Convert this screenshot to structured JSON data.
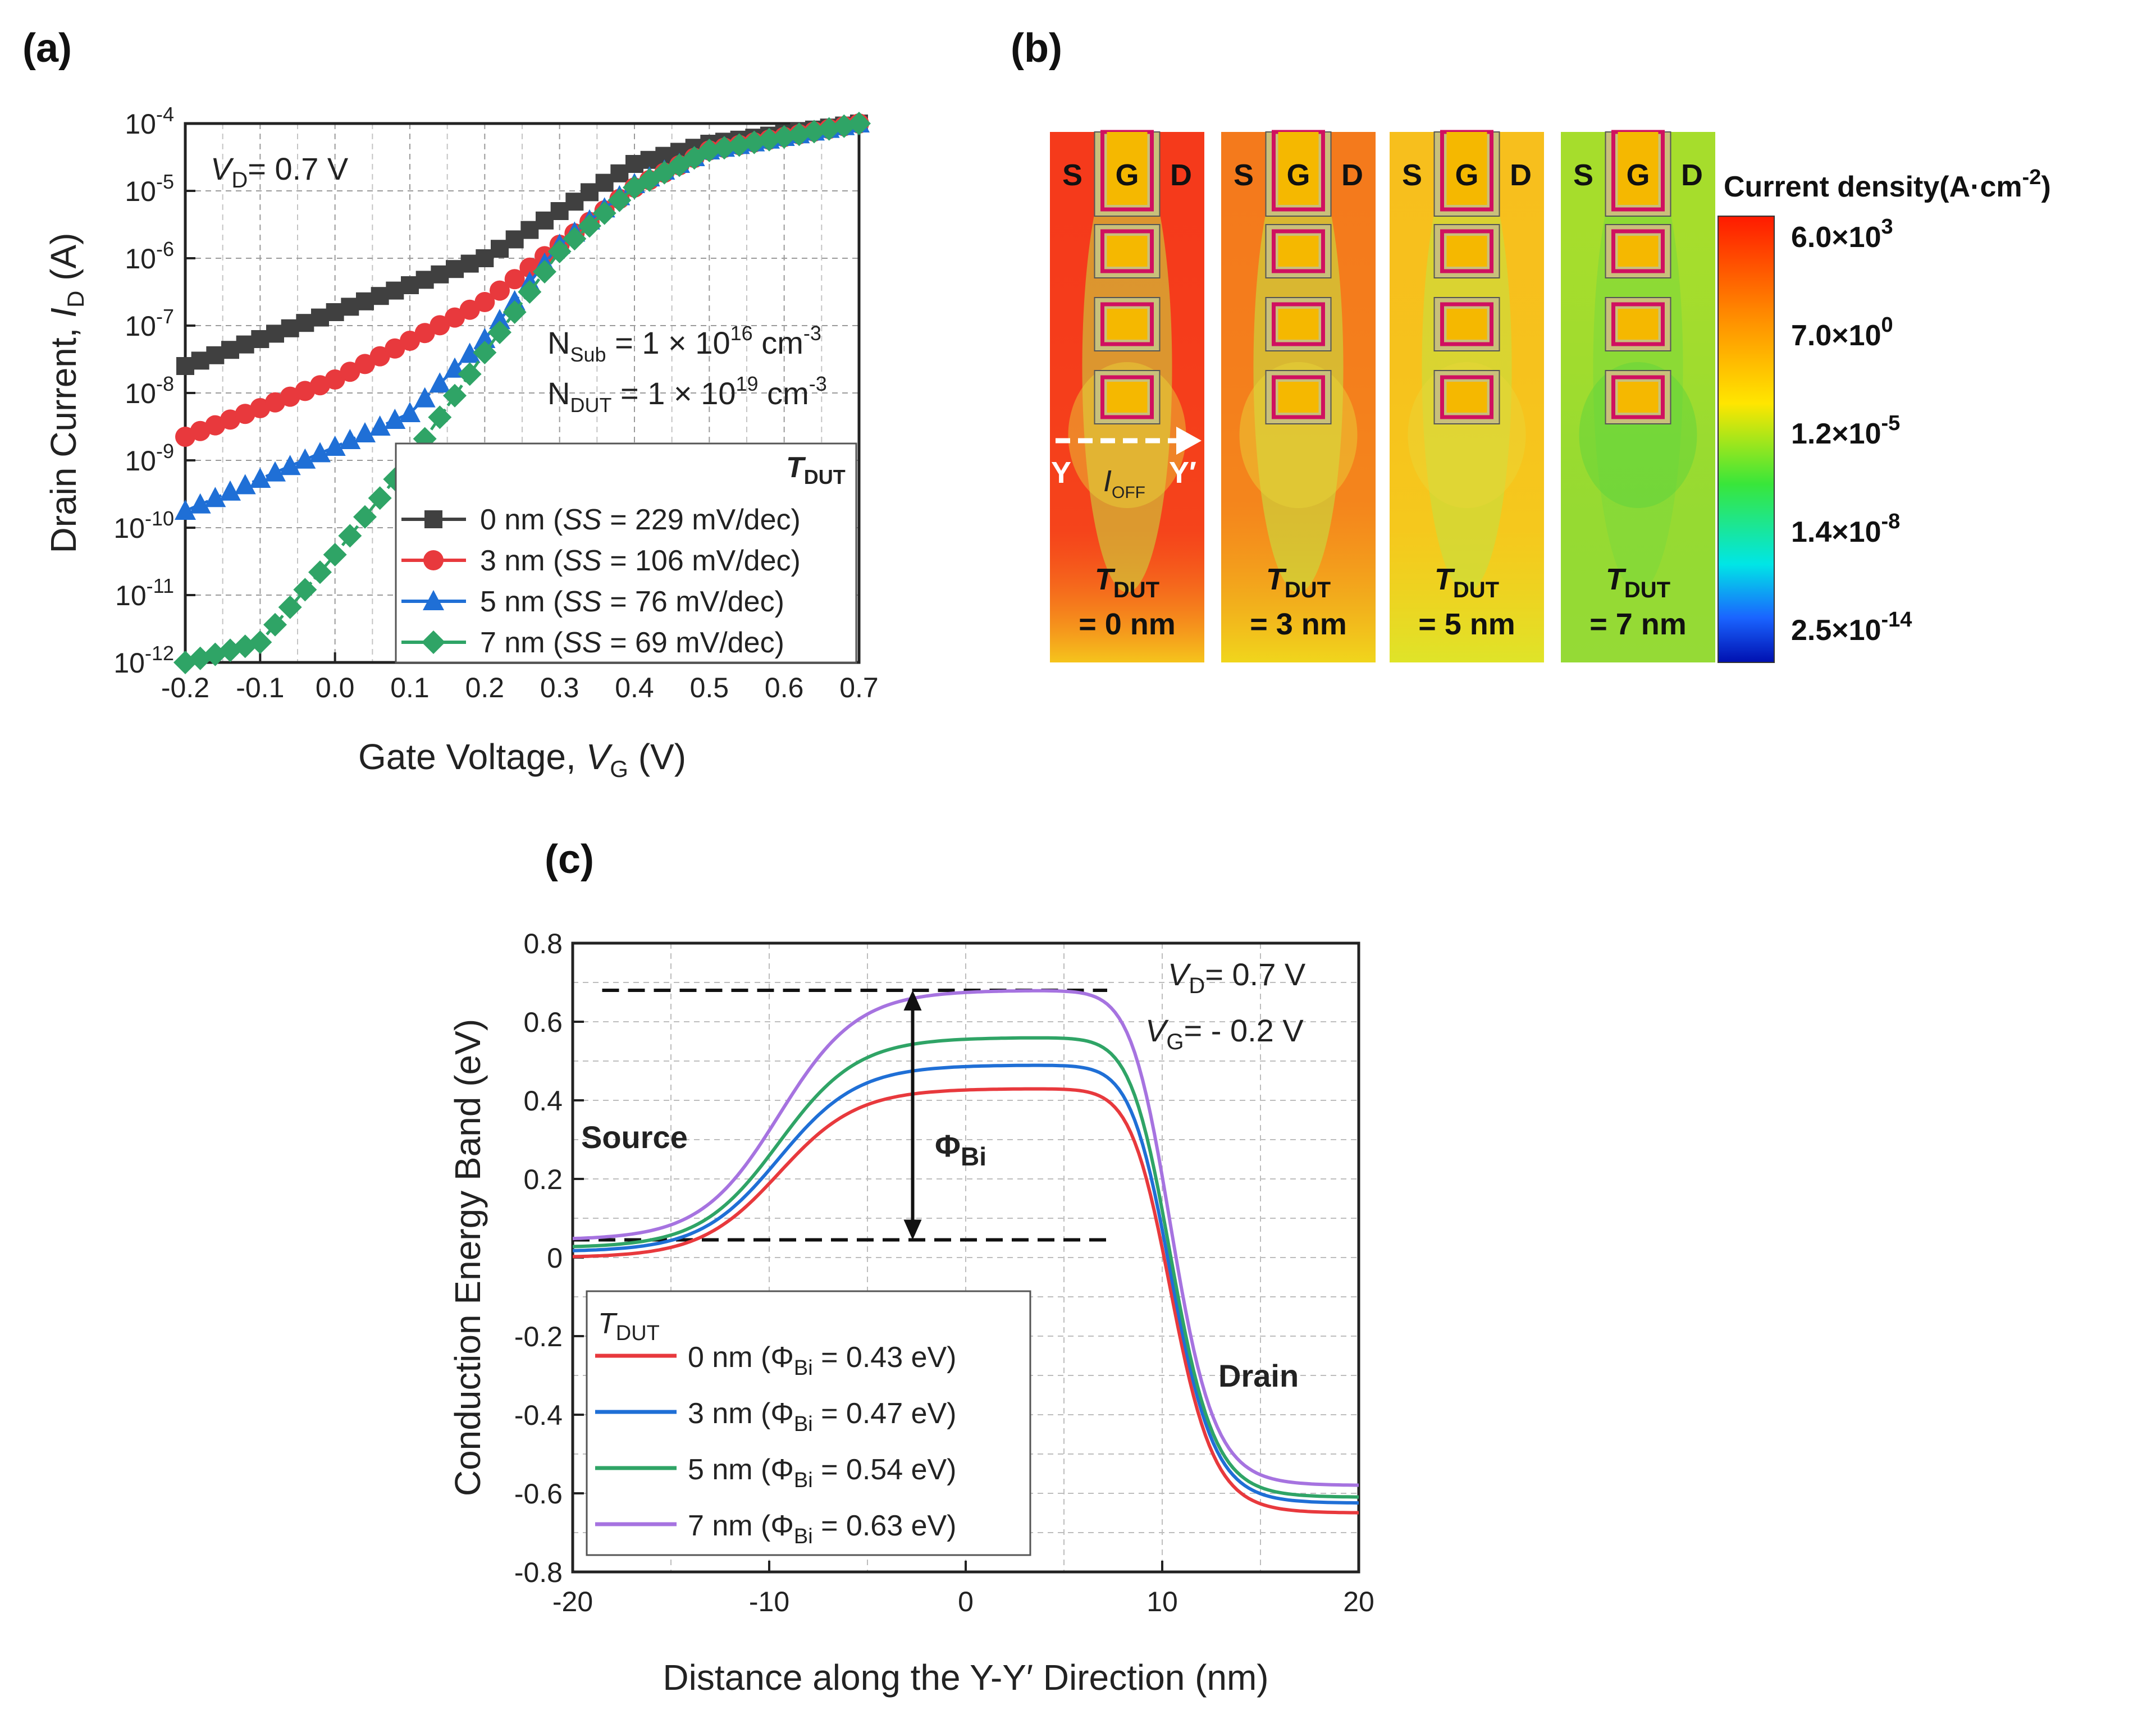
{
  "panels": {
    "a": "(a)",
    "b": "(b)",
    "c": "(c)"
  },
  "chart_data": [
    {
      "id": "a",
      "type": "line",
      "yscale": "log",
      "xlabel": "Gate Voltage, V_G (V)",
      "ylabel": "Drain Current, I_D (A)",
      "xlim": [
        -0.2,
        0.7
      ],
      "ylim_exp": [
        -12,
        -4
      ],
      "xticks": [
        "-0.2",
        "-0.1",
        "0.0",
        "0.1",
        "0.2",
        "0.3",
        "0.4",
        "0.5",
        "0.6",
        "0.7"
      ],
      "xtick_values": [
        -0.2,
        -0.1,
        0.0,
        0.1,
        0.2,
        0.3,
        0.4,
        0.5,
        0.6,
        0.7
      ],
      "yticks_exp": [
        "-4",
        "-5",
        "-6",
        "-7",
        "-8",
        "-9",
        "-10",
        "-11",
        "-12"
      ],
      "ytick_base": "10",
      "annotations": {
        "vd": "= 0.7 V",
        "nsub_pre": "N",
        "nsub_sub": "Sub",
        "nsub_mid": " = 1 × 10",
        "nsub_exp": "16",
        "nsub_unit": " cm",
        "nsub_unit_exp": "-3",
        "ndut_pre": "N",
        "ndut_sub": "DUT",
        "ndut_mid": " = 1 × 10",
        "ndut_exp": "19",
        "ndut_unit": " cm",
        "ndut_unit_exp": "-3"
      },
      "legend_title": "T_DUT",
      "series": [
        {
          "name": "0 nm (SS = 229 mV/dec)",
          "thickness": "0 nm",
          "ss": "229 mV/dec",
          "color": "#404040",
          "marker": "square",
          "points": [
            [
              -0.2,
              -7.6
            ],
            [
              0.0,
              -6.8
            ],
            [
              0.2,
              -6.0
            ],
            [
              0.3,
              -5.3
            ],
            [
              0.4,
              -4.6
            ],
            [
              0.5,
              -4.3
            ],
            [
              0.7,
              -4.0
            ]
          ]
        },
        {
          "name": "3 nm (SS = 106 mV/dec)",
          "thickness": "3 nm",
          "ss": "106 mV/dec",
          "color": "#e8393d",
          "marker": "circle",
          "points": [
            [
              -0.2,
              -8.65
            ],
            [
              0.0,
              -7.8
            ],
            [
              0.2,
              -6.65
            ],
            [
              0.3,
              -5.8
            ],
            [
              0.4,
              -4.95
            ],
            [
              0.5,
              -4.4
            ],
            [
              0.7,
              -4.0
            ]
          ]
        },
        {
          "name": "5 nm (SS = 76 mV/dec)",
          "thickness": "5 nm",
          "ss": "76 mV/dec",
          "color": "#1f6fd6",
          "marker": "triangle",
          "points": [
            [
              -0.2,
              -9.75
            ],
            [
              0.0,
              -8.8
            ],
            [
              0.1,
              -8.3
            ],
            [
              0.2,
              -7.2
            ],
            [
              0.3,
              -5.8
            ],
            [
              0.4,
              -4.9
            ],
            [
              0.5,
              -4.4
            ],
            [
              0.7,
              -4.0
            ]
          ]
        },
        {
          "name": "7 nm (SS = 69 mV/dec)",
          "thickness": "7 nm",
          "ss": "69 mV/dec",
          "color": "#2fa466",
          "marker": "diamond",
          "points": [
            [
              -0.2,
              -12.0
            ],
            [
              -0.1,
              -11.7
            ],
            [
              0.0,
              -10.4
            ],
            [
              0.1,
              -9.0
            ],
            [
              0.2,
              -7.4
            ],
            [
              0.3,
              -5.9
            ],
            [
              0.4,
              -4.95
            ],
            [
              0.5,
              -4.4
            ],
            [
              0.7,
              -4.0
            ]
          ]
        }
      ]
    },
    {
      "id": "b",
      "type": "heatmap",
      "colorbar_title": "Current density(A·cm",
      "colorbar_title_exp": "-2",
      "colorbar_title_end": ")",
      "colorbar_labels": [
        {
          "mant": "6.0×10",
          "exp": "3"
        },
        {
          "mant": "7.0×10",
          "exp": "0"
        },
        {
          "mant": "1.2×10",
          "exp": "-5"
        },
        {
          "mant": "1.4×10",
          "exp": "-8"
        },
        {
          "mant": "2.5×10",
          "exp": "-14"
        }
      ],
      "terminal_labels": {
        "s": "S",
        "g": "G",
        "d": "D"
      },
      "cut_labels": {
        "y": "Y",
        "y_prime": "Y′",
        "ioff": "I",
        "ioff_sub": "OFF"
      },
      "sims": [
        {
          "t_label": "T",
          "t_sub": "DUT",
          "value": "= 0 nm",
          "bg": "#f53a1b"
        },
        {
          "t_label": "T",
          "t_sub": "DUT",
          "value": "= 3 nm",
          "bg": "#f47a1c"
        },
        {
          "t_label": "T",
          "t_sub": "DUT",
          "value": "= 5 nm",
          "bg": "#f7bf1d"
        },
        {
          "t_label": "T",
          "t_sub": "DUT",
          "value": "= 7 nm",
          "bg": "#a6dd2c"
        }
      ]
    },
    {
      "id": "c",
      "type": "line",
      "xlabel": "Distance along the Y-Y′ Direction (nm)",
      "ylabel": "Conduction Energy Band (eV)",
      "xlim": [
        -20,
        20
      ],
      "ylim": [
        -0.8,
        0.8
      ],
      "xticks": [
        "-20",
        "-10",
        "0",
        "10",
        "20"
      ],
      "xtick_values": [
        -20,
        -10,
        0,
        10,
        20
      ],
      "yticks": [
        "0.8",
        "0.6",
        "0.4",
        "0.2",
        "0",
        "-0.2",
        "-0.4",
        "-0.6",
        "-0.8"
      ],
      "ytick_values": [
        0.8,
        0.6,
        0.4,
        0.2,
        0,
        -0.2,
        -0.4,
        -0.6,
        -0.8
      ],
      "annotations": {
        "vd": "= 0.7 V",
        "vg": "= - 0.2 V",
        "source": "Source",
        "drain": "Drain",
        "phi": "Φ",
        "phi_sub": "Bi",
        "dash_top": 0.68,
        "dash_bottom": 0.045
      },
      "legend_title": "T_DUT",
      "series": [
        {
          "name": "0 nm (Φ_Bi = 0.43 eV)",
          "thickness": "0 nm",
          "phi": "0.43 eV",
          "color": "#e8393d",
          "peak": 0.43,
          "left": 0.0,
          "right": -0.65
        },
        {
          "name": "3 nm (Φ_Bi = 0.47 eV)",
          "thickness": "3 nm",
          "phi": "0.47 eV",
          "color": "#1f6fd6",
          "peak": 0.49,
          "left": 0.015,
          "right": -0.625
        },
        {
          "name": "5 nm (Φ_Bi = 0.54 eV)",
          "thickness": "5 nm",
          "phi": "0.54 eV",
          "color": "#2fa466",
          "peak": 0.56,
          "left": 0.025,
          "right": -0.61
        },
        {
          "name": "7 nm (Φ_Bi = 0.63 eV)",
          "thickness": "7 nm",
          "phi": "0.63 eV",
          "color": "#a673e0",
          "peak": 0.68,
          "left": 0.045,
          "right": -0.58
        }
      ]
    }
  ]
}
